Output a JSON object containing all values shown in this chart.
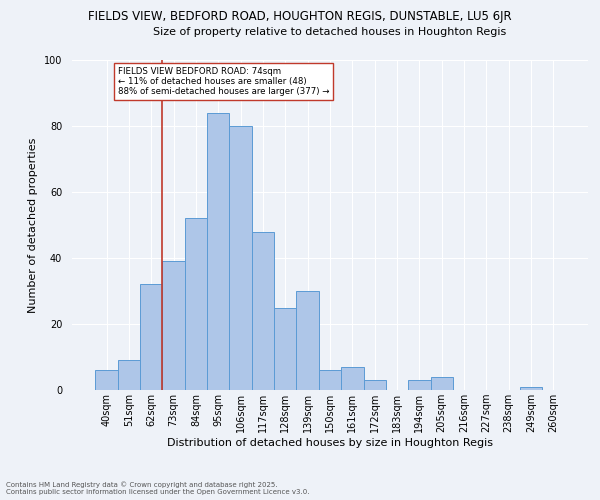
{
  "title1": "FIELDS VIEW, BEDFORD ROAD, HOUGHTON REGIS, DUNSTABLE, LU5 6JR",
  "title2": "Size of property relative to detached houses in Houghton Regis",
  "xlabel": "Distribution of detached houses by size in Houghton Regis",
  "ylabel": "Number of detached properties",
  "categories": [
    "40sqm",
    "51sqm",
    "62sqm",
    "73sqm",
    "84sqm",
    "95sqm",
    "106sqm",
    "117sqm",
    "128sqm",
    "139sqm",
    "150sqm",
    "161sqm",
    "172sqm",
    "183sqm",
    "194sqm",
    "205sqm",
    "216sqm",
    "227sqm",
    "238sqm",
    "249sqm",
    "260sqm"
  ],
  "values": [
    6,
    9,
    32,
    39,
    52,
    84,
    80,
    48,
    25,
    30,
    6,
    7,
    3,
    0,
    3,
    4,
    0,
    0,
    0,
    1,
    0
  ],
  "bar_color": "#aec6e8",
  "bar_edge_color": "#5b9bd5",
  "bar_width": 1.0,
  "vline_x": 3.0,
  "vline_color": "#c0392b",
  "annotation_text": "FIELDS VIEW BEDFORD ROAD: 74sqm\n← 11% of detached houses are smaller (48)\n88% of semi-detached houses are larger (377) →",
  "annotation_box_color": "#ffffff",
  "annotation_box_edge": "#c0392b",
  "ylim": [
    0,
    100
  ],
  "footnote1": "Contains HM Land Registry data © Crown copyright and database right 2025.",
  "footnote2": "Contains public sector information licensed under the Open Government Licence v3.0.",
  "bg_color": "#eef2f8",
  "plot_bg_color": "#eef2f8",
  "grid_color": "#ffffff",
  "title1_fontsize": 8.5,
  "title2_fontsize": 8.0,
  "axis_label_fontsize": 8.0,
  "tick_fontsize": 7.0,
  "annot_fontsize": 6.2,
  "footnote_fontsize": 5.0
}
